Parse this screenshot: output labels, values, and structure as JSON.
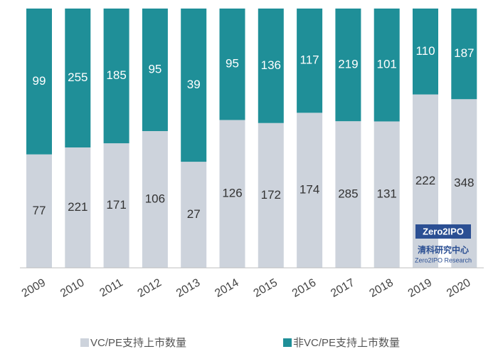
{
  "chart_data": {
    "type": "stacked100",
    "categories": [
      "2009",
      "2010",
      "2011",
      "2012",
      "2013",
      "2014",
      "2015",
      "2016",
      "2017",
      "2018",
      "2019",
      "2020"
    ],
    "series": [
      {
        "name": "VC/PE支持上市数量",
        "color": "#cdd3dc",
        "label_color": "#333333",
        "values": [
          77,
          221,
          171,
          106,
          27,
          126,
          172,
          174,
          285,
          131,
          222,
          348
        ]
      },
      {
        "name": "非VC/PE支持上市数量",
        "color": "#1f8f98",
        "label_color": "#ffffff",
        "values": [
          99,
          255,
          185,
          95,
          39,
          95,
          136,
          117,
          219,
          101,
          110,
          187
        ]
      }
    ],
    "annotations": [
      "Zero2IPO",
      "清科研究中心",
      "Zero2IPO Research"
    ]
  }
}
